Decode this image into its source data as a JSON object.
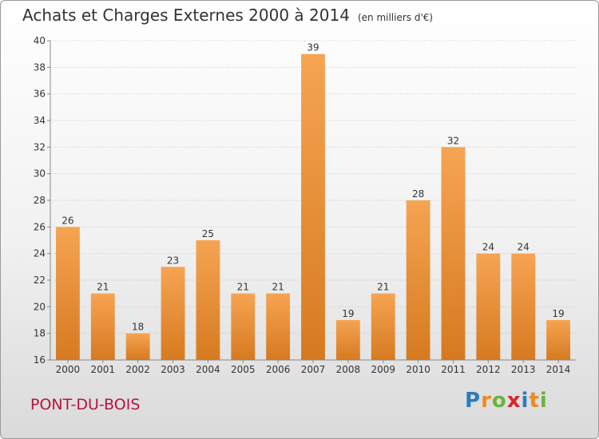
{
  "title": "Achats et Charges Externes 2000 à 2014",
  "unit_note": "(en milliers d'€)",
  "place": "PONT-DU-BOIS",
  "logo": {
    "text": "Proxiti",
    "letters": [
      {
        "ch": "P",
        "color": "#2a7bc0"
      },
      {
        "ch": "r",
        "color": "#f08a1c"
      },
      {
        "ch": "o",
        "color": "#6cb33f"
      },
      {
        "ch": "x",
        "color": "#d8262d"
      },
      {
        "ch": "i",
        "color": "#2a7bc0"
      },
      {
        "ch": "t",
        "color": "#f08a1c"
      },
      {
        "ch": "i",
        "color": "#6cb33f"
      }
    ]
  },
  "colors": {
    "bar_light": "#f6a452",
    "bar_dark": "#d67a20",
    "grid": "#c8c8c8",
    "title_place": "#b8133f"
  },
  "chart_data": {
    "type": "bar",
    "categories": [
      "2000",
      "2001",
      "2002",
      "2003",
      "2004",
      "2005",
      "2006",
      "2007",
      "2008",
      "2009",
      "2010",
      "2011",
      "2012",
      "2013",
      "2014"
    ],
    "values": [
      26,
      21,
      18,
      23,
      25,
      21,
      21,
      39,
      19,
      21,
      28,
      32,
      24,
      24,
      19
    ],
    "ylim": [
      16,
      40
    ],
    "yticks": [
      16,
      18,
      20,
      22,
      24,
      26,
      28,
      30,
      32,
      34,
      36,
      38,
      40
    ],
    "grid": true,
    "data_labels": true
  }
}
